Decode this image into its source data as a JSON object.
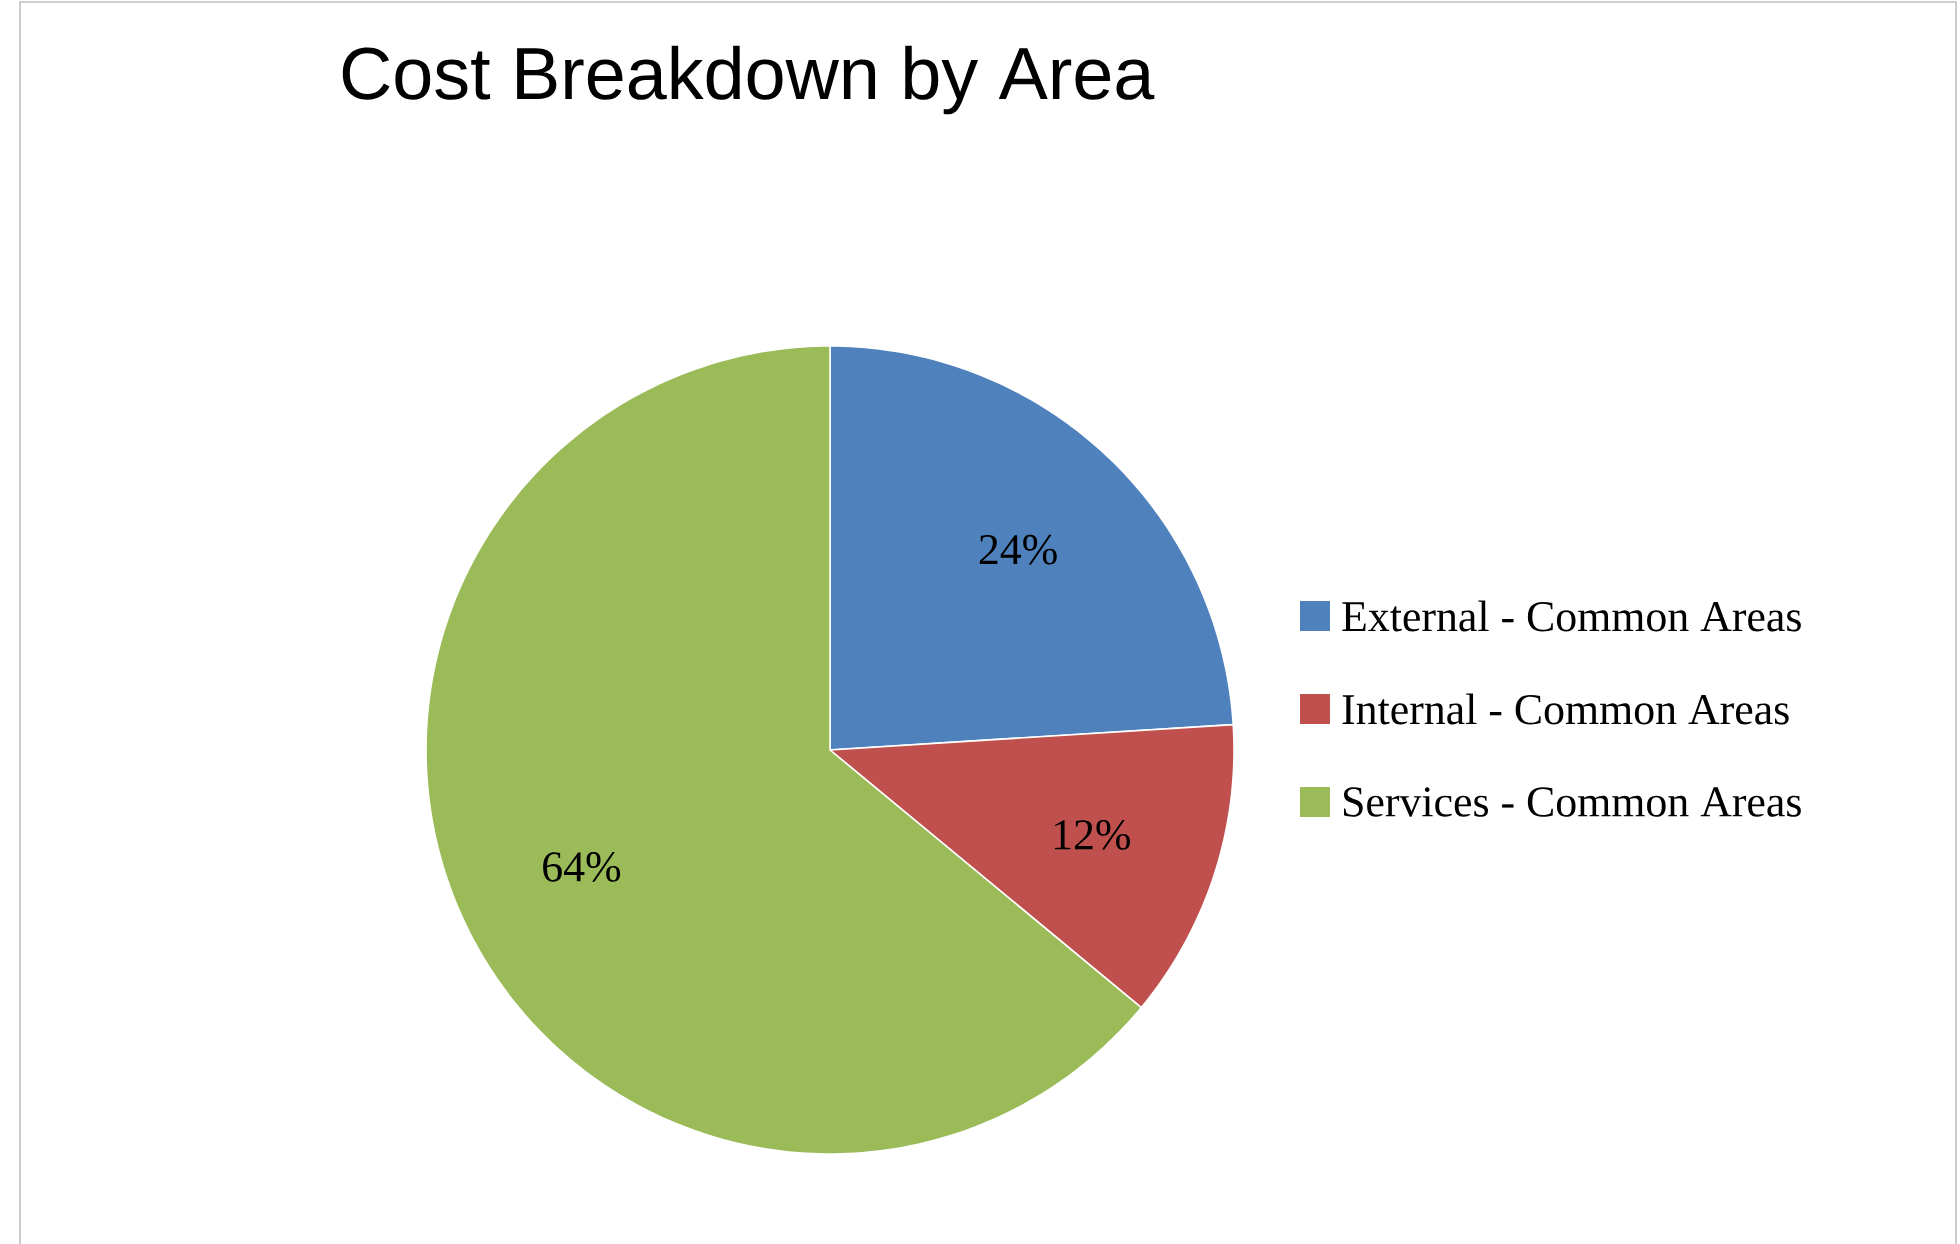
{
  "chart_data": {
    "type": "pie",
    "title": "Cost Breakdown by Area",
    "categories": [
      "External - Common Areas",
      "Internal - Common Areas",
      "Services - Common Areas"
    ],
    "values": [
      24,
      12,
      64
    ],
    "colors": [
      "#4f81bd",
      "#c0504d",
      "#9bbb59"
    ],
    "value_labels": [
      "24%",
      "12%",
      "64%"
    ],
    "legend": "right"
  }
}
